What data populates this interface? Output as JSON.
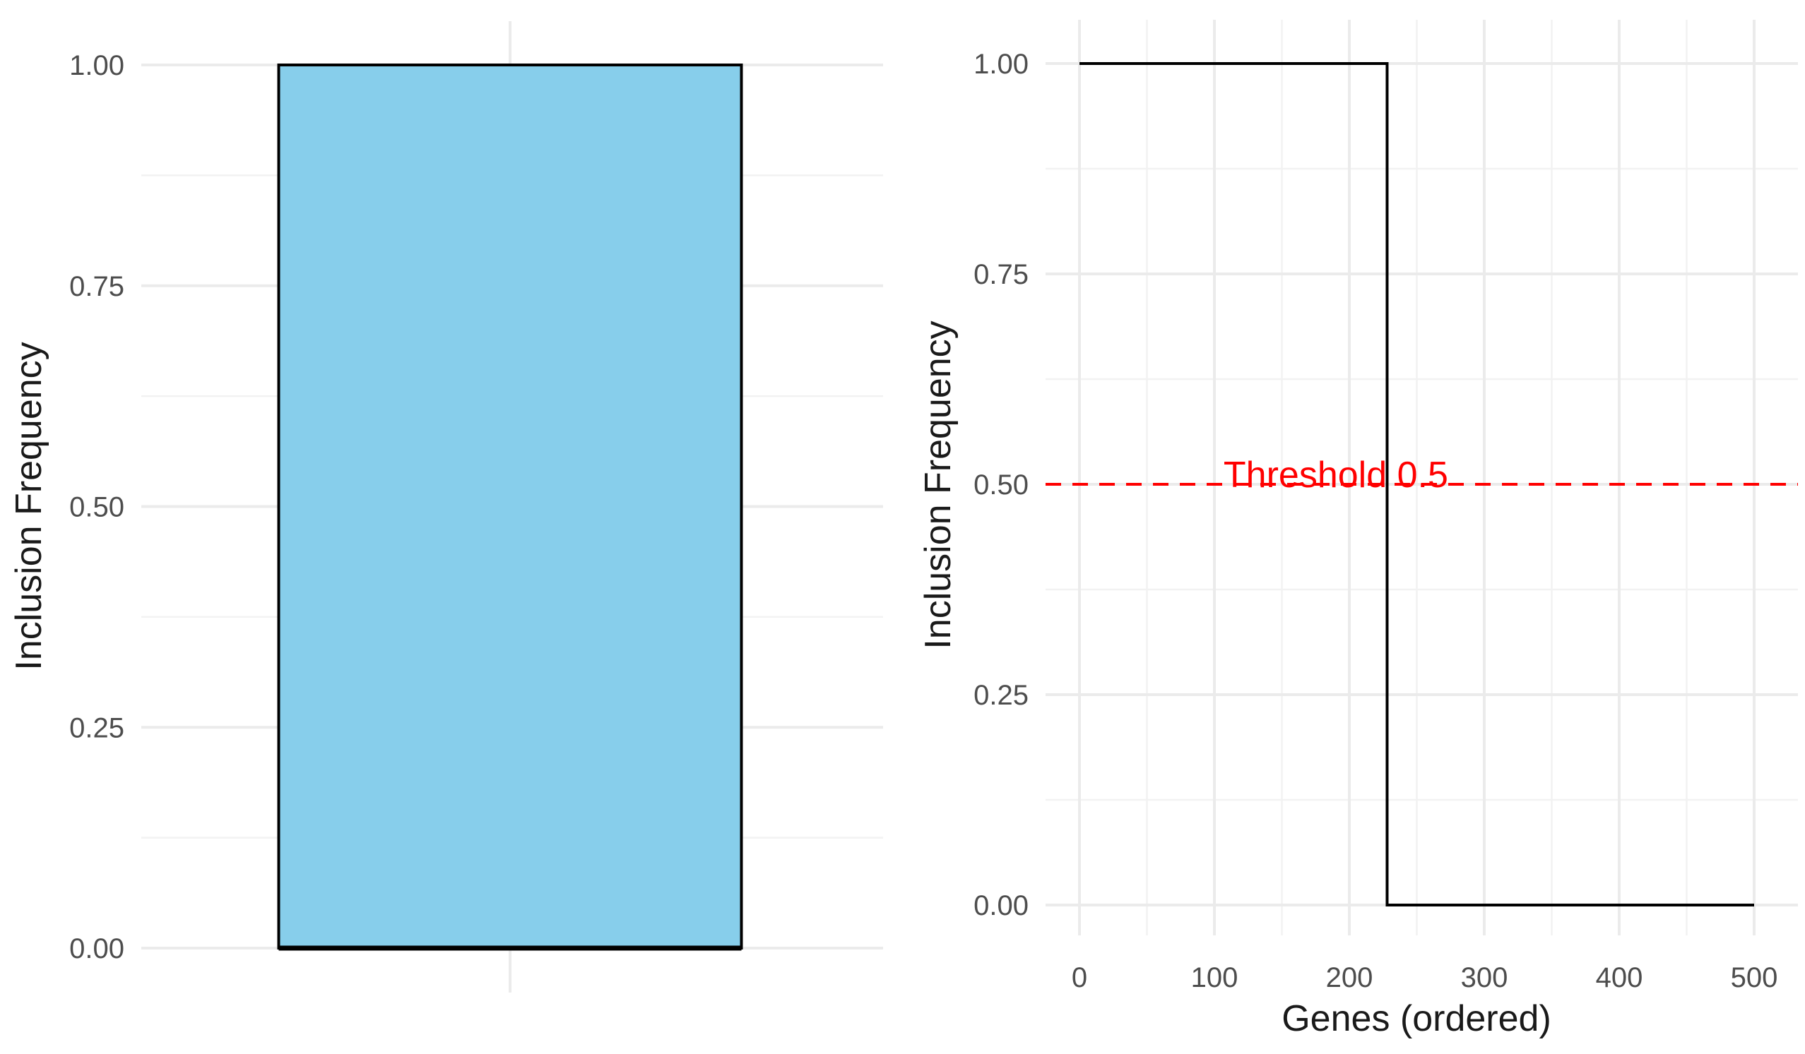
{
  "chart_data": [
    {
      "type": "bar",
      "categories": [
        ""
      ],
      "values": [
        1.0
      ],
      "ymin_values": [
        0.0
      ],
      "title": "",
      "xlabel": "",
      "ylabel": "Inclusion Frequency",
      "ylim": [
        0,
        1
      ],
      "yticks": [
        0,
        0.25,
        0.5,
        0.75,
        1.0
      ],
      "ytick_labels": [
        "0.00",
        "0.25",
        "0.50",
        "0.75",
        "1.00"
      ],
      "grid": true,
      "fill_color": "#87ceeb",
      "edge_color": "#000000"
    },
    {
      "type": "line",
      "title": "",
      "xlabel": "Genes (ordered)",
      "ylabel": "Inclusion Frequency",
      "xlim": [
        0,
        500
      ],
      "ylim": [
        0,
        1
      ],
      "xticks": [
        0,
        100,
        200,
        300,
        400,
        500
      ],
      "xtick_labels": [
        "0",
        "100",
        "200",
        "300",
        "400",
        "500"
      ],
      "yticks": [
        0,
        0.25,
        0.5,
        0.75,
        1.0
      ],
      "ytick_labels": [
        "0.00",
        "0.25",
        "0.50",
        "0.75",
        "1.00"
      ],
      "grid": true,
      "series": [
        {
          "x": [
            0,
            228,
            228,
            500
          ],
          "values": [
            1.0,
            1.0,
            0.0,
            0.0
          ],
          "color": "#000000"
        }
      ],
      "hline": {
        "y": 0.5,
        "color": "#ff0000",
        "style": "dashed"
      },
      "annotation": {
        "text": "Threshold 0.5",
        "x": 190,
        "y": 0.5,
        "color": "#ff0000"
      }
    }
  ]
}
